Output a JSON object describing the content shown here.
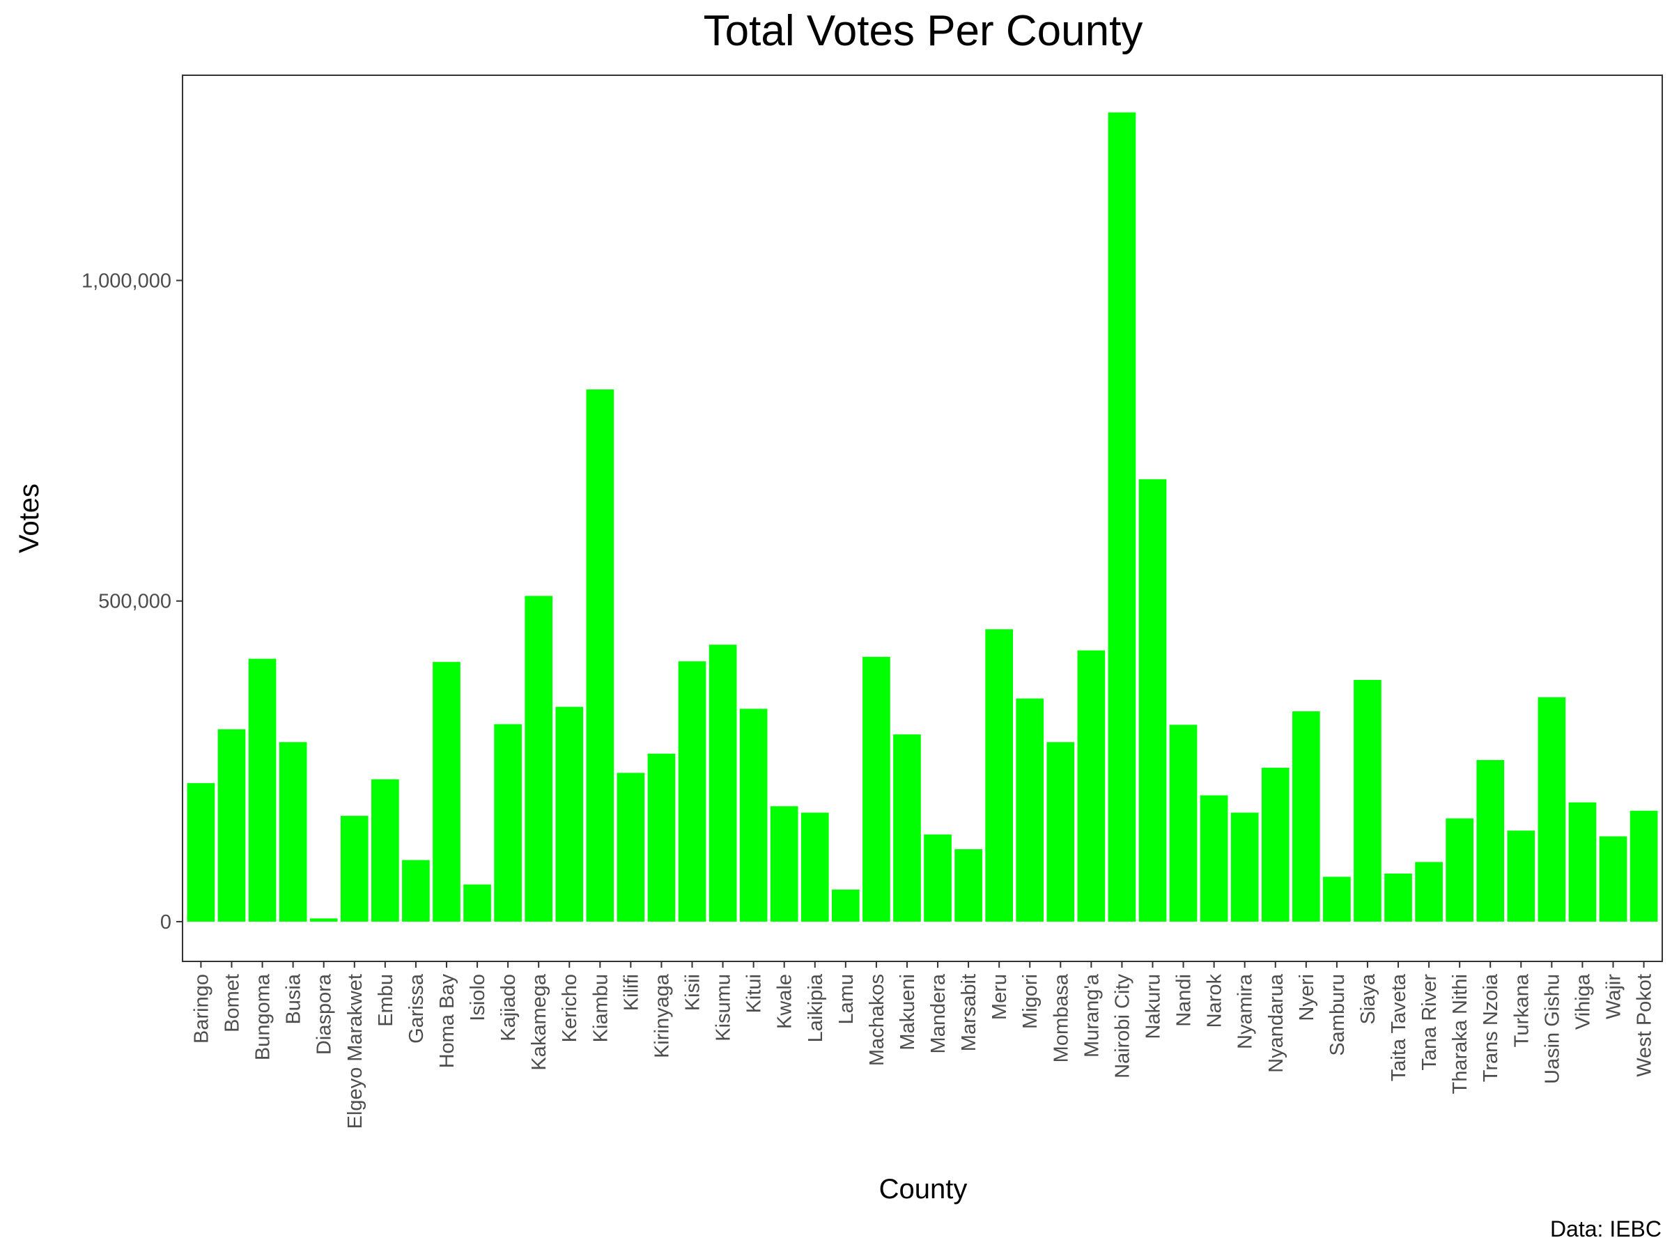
{
  "chart_data": {
    "type": "bar",
    "title": "Total Votes Per County",
    "xlabel": "County",
    "ylabel": "Votes",
    "caption": "Data: IEBC",
    "bar_color": "#00ff00",
    "ylim": [
      -62000,
      1320000
    ],
    "y_ticks": [
      0,
      500000,
      1000000
    ],
    "y_tick_labels": [
      "0",
      "500,000",
      "1,000,000"
    ],
    "grid": false,
    "legend": "none",
    "categories": [
      "Baringo",
      "Bomet",
      "Bungoma",
      "Busia",
      "Diaspora",
      "Elgeyo Marakwet",
      "Embu",
      "Garissa",
      "Homa Bay",
      "Isiolo",
      "Kajiado",
      "Kakamega",
      "Kericho",
      "Kiambu",
      "Kilifi",
      "Kirinyaga",
      "Kisii",
      "Kisumu",
      "Kitui",
      "Kwale",
      "Laikipia",
      "Lamu",
      "Machakos",
      "Makueni",
      "Mandera",
      "Marsabit",
      "Meru",
      "Migori",
      "Mombasa",
      "Murang'a",
      "Nairobi City",
      "Nakuru",
      "Nandi",
      "Narok",
      "Nyamira",
      "Nyandarua",
      "Nyeri",
      "Samburu",
      "Siaya",
      "Taita Taveta",
      "Tana River",
      "Tharaka Nithi",
      "Trans Nzoia",
      "Turkana",
      "Uasin Gishu",
      "Vihiga",
      "Wajir",
      "West Pokot"
    ],
    "values": [
      216000,
      300000,
      410000,
      280000,
      5000,
      165000,
      222000,
      96000,
      405000,
      58000,
      308000,
      508000,
      335000,
      830000,
      232000,
      262000,
      406000,
      432000,
      332000,
      180000,
      170000,
      50000,
      413000,
      292000,
      136000,
      113000,
      456000,
      348000,
      280000,
      423000,
      1262000,
      690000,
      307000,
      197000,
      170000,
      240000,
      328000,
      70000,
      377000,
      75000,
      93000,
      161000,
      252000,
      142000,
      350000,
      186000,
      133000,
      173000
    ]
  }
}
